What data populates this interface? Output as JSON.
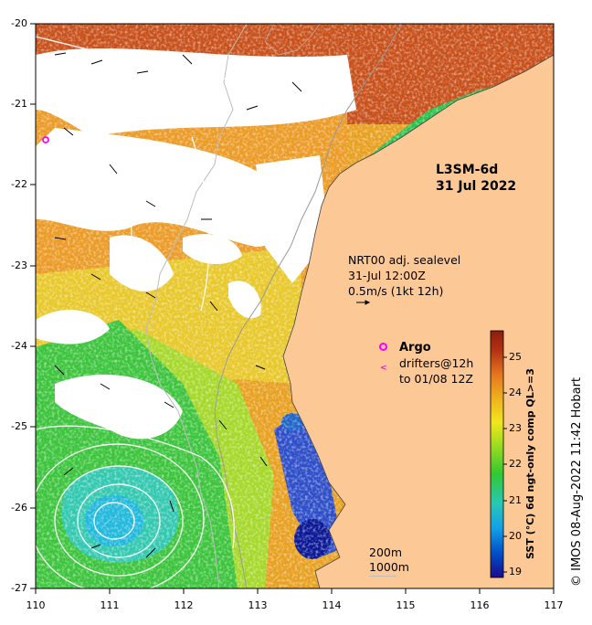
{
  "product": {
    "name": "L3SM-6d",
    "date": "31 Jul 2022"
  },
  "sealevel_note": {
    "line1": "NRT00 adj. sealevel",
    "line2": "31-Jul 12:00Z",
    "line3": "0.5m/s (1kt 12h)"
  },
  "argo": {
    "label": "Argo",
    "marker_color": "#ff00ff"
  },
  "drifters": {
    "line1": "drifters@12h",
    "line2": "to 01/08 12Z"
  },
  "isobaths": {
    "label1": "200m",
    "label2": "1000m"
  },
  "axes": {
    "lon_ticks": [
      "110",
      "111",
      "112",
      "113",
      "114",
      "115",
      "116",
      "117"
    ],
    "lat_ticks": [
      "-20",
      "-21",
      "-22",
      "-23",
      "-24",
      "-25",
      "-26",
      "-27"
    ],
    "lon_range": [
      110,
      117
    ],
    "lat_range": [
      -27,
      -20
    ]
  },
  "colorbar": {
    "title": "SST (°C) 6d ngt-only comp QL>=3",
    "ticks": [
      "25",
      "24",
      "23",
      "22",
      "21",
      "20",
      "19"
    ],
    "range": [
      18.8,
      25.8
    ],
    "colors": [
      "#1c0a8c",
      "#0050c8",
      "#14a0e8",
      "#28c8b4",
      "#32c832",
      "#aade1e",
      "#f0e61e",
      "#f0b41e",
      "#e6781e",
      "#b43214",
      "#8c1e0a"
    ]
  },
  "credit": "© IMOS 08-Aug-2022 11:42 Hobart",
  "colors": {
    "land": "#fbc896",
    "no_data": "#ffffff"
  }
}
